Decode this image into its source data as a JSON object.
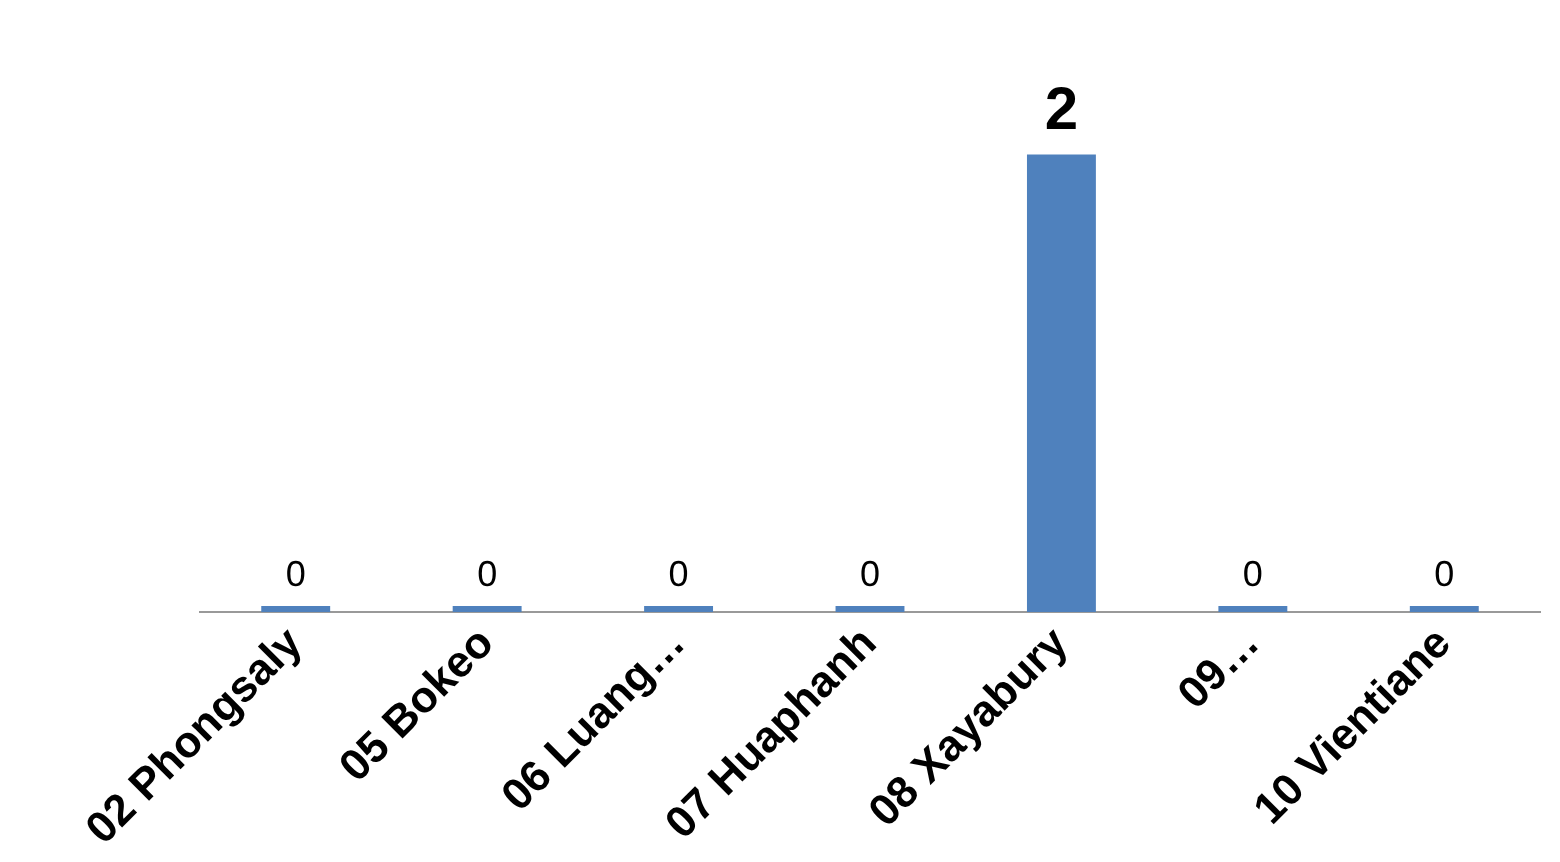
{
  "chart_data": {
    "type": "bar",
    "categories": [
      "02 Phongsaly",
      "05 Bokeo",
      "06 Luang…",
      "07 Huaphanh",
      "08 Xayabury",
      "09…",
      "10 Vientiane"
    ],
    "values": [
      0,
      0,
      0,
      0,
      2,
      0,
      0
    ],
    "color": "#4f81bd",
    "data_labels": true,
    "grid": false,
    "legend": false
  }
}
